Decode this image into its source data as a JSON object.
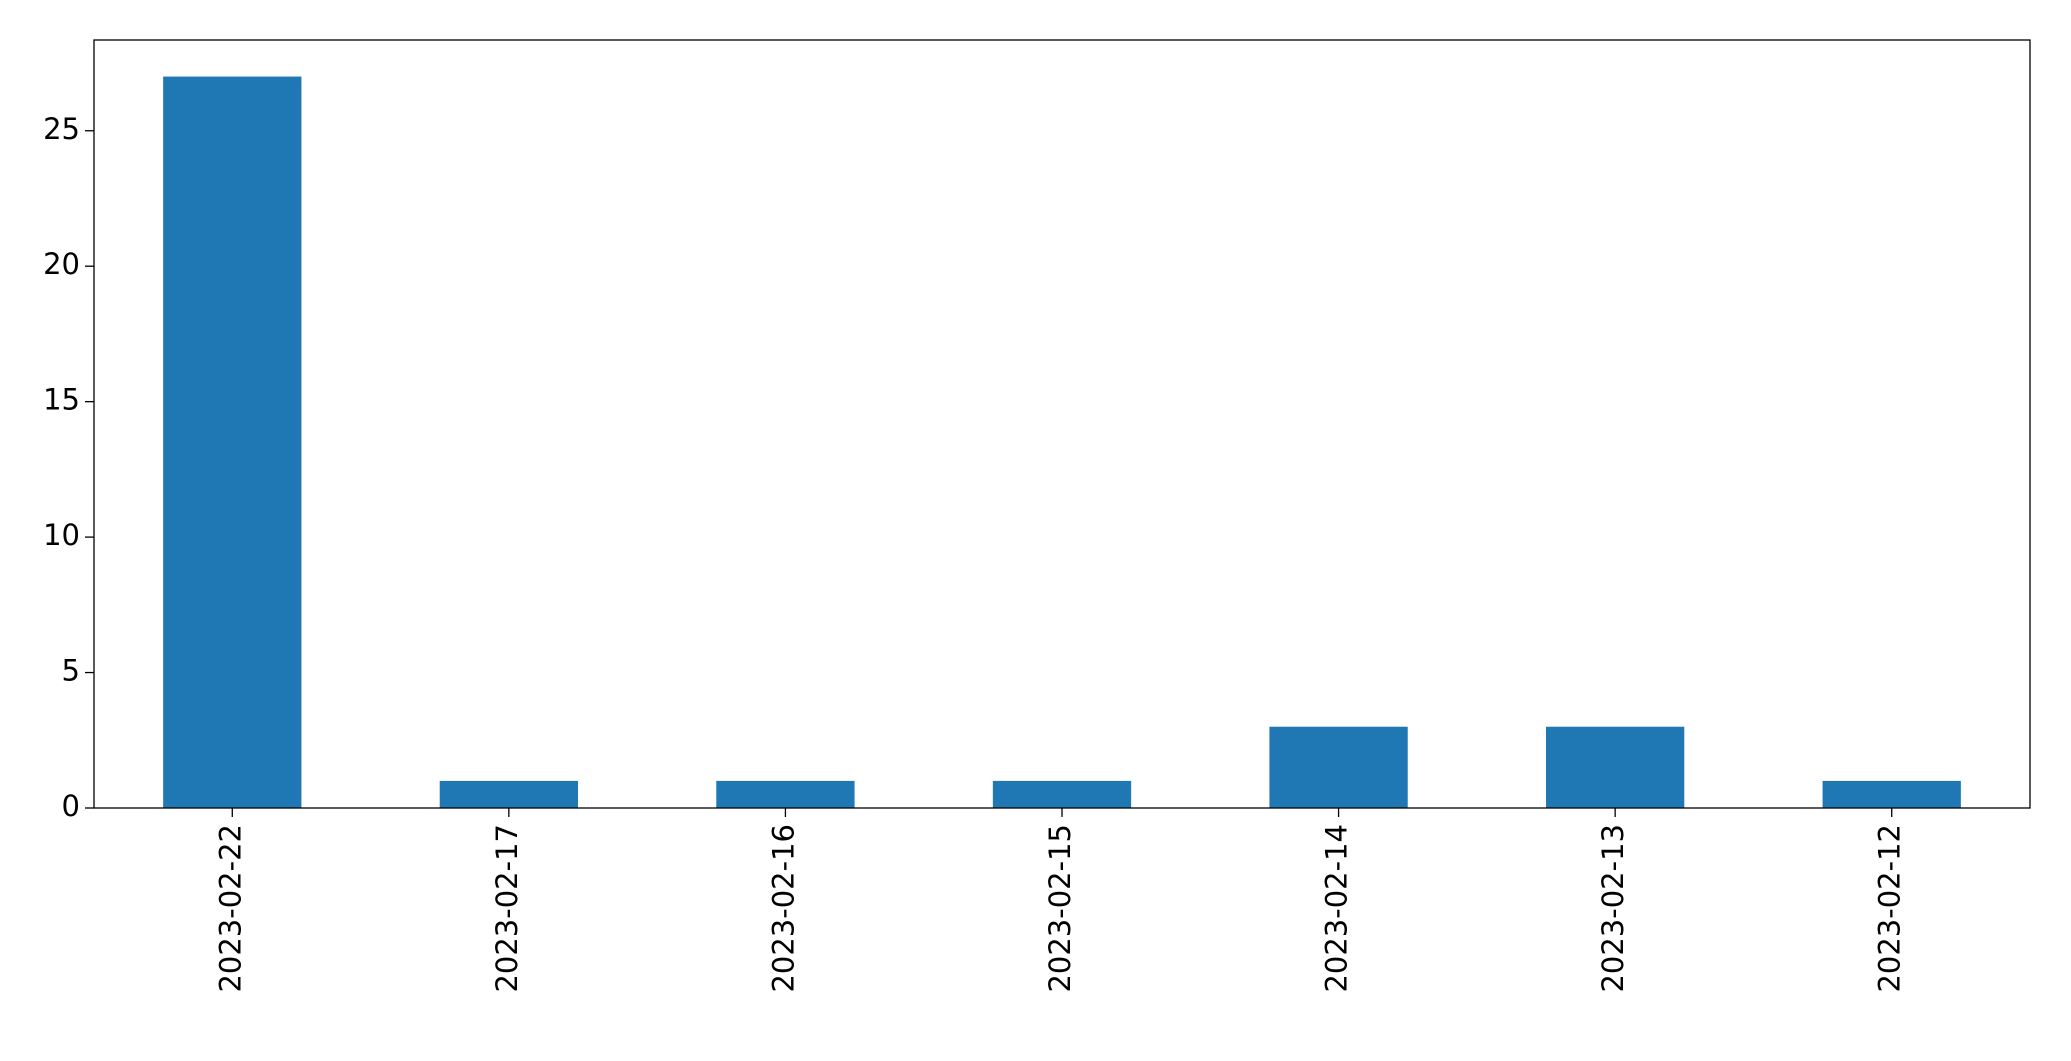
{
  "chart_data": {
    "type": "bar",
    "categories": [
      "2023-02-22",
      "2023-02-17",
      "2023-02-16",
      "2023-02-15",
      "2023-02-14",
      "2023-02-13",
      "2023-02-12"
    ],
    "values": [
      27,
      1,
      1,
      1,
      3,
      3,
      1
    ],
    "color": "#1f77b4",
    "ylim": [
      0,
      28.35
    ],
    "yticks": [
      0,
      5,
      10,
      15,
      20,
      25
    ],
    "grid": false
  }
}
